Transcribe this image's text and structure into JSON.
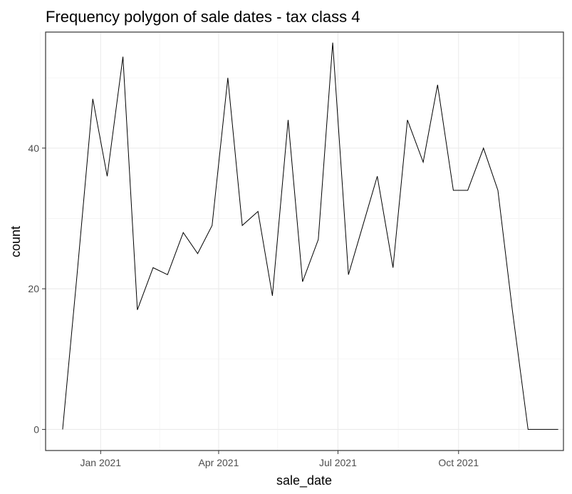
{
  "chart_data": {
    "type": "line",
    "title": "Frequency polygon of sale dates - tax class 4",
    "xlabel": "sale_date",
    "ylabel": "count",
    "x_type": "date",
    "xlim": [
      "2020-11-20",
      "2021-12-20"
    ],
    "ylim": [
      -3,
      56.5
    ],
    "x_ticks": [
      {
        "value": "2021-01-01",
        "label": "Jan 2021"
      },
      {
        "value": "2021-04-01",
        "label": "Apr 2021"
      },
      {
        "value": "2021-07-01",
        "label": "Jul 2021"
      },
      {
        "value": "2021-10-01",
        "label": "Oct 2021"
      }
    ],
    "x_minor_ticks": [
      "2020-11-16",
      "2021-02-15",
      "2021-05-16",
      "2021-08-16",
      "2021-11-16"
    ],
    "y_ticks": [
      {
        "value": 0,
        "label": "0"
      },
      {
        "value": 20,
        "label": "20"
      },
      {
        "value": 40,
        "label": "40"
      }
    ],
    "y_minor_ticks": [
      10,
      30,
      50
    ],
    "grid": true,
    "series": [
      {
        "color": "#000000",
        "x": [
          "2020-12-03",
          "2020-12-14",
          "2020-12-26",
          "2021-01-06",
          "2021-01-18",
          "2021-01-29",
          "2021-02-10",
          "2021-02-21",
          "2021-03-05",
          "2021-03-16",
          "2021-03-27",
          "2021-04-08",
          "2021-04-19",
          "2021-05-01",
          "2021-05-12",
          "2021-05-24",
          "2021-06-04",
          "2021-06-16",
          "2021-06-27",
          "2021-07-09",
          "2021-07-20",
          "2021-07-31",
          "2021-08-12",
          "2021-08-23",
          "2021-09-04",
          "2021-09-15",
          "2021-09-27",
          "2021-10-08",
          "2021-10-20",
          "2021-10-31",
          "2021-11-11",
          "2021-11-23",
          "2021-12-04",
          "2021-12-16"
        ],
        "y": [
          0,
          22,
          47,
          36,
          53,
          17,
          23,
          22,
          28,
          25,
          29,
          50,
          29,
          31,
          19,
          44,
          21,
          27,
          55,
          22,
          29,
          36,
          23,
          44,
          38,
          49,
          34,
          34,
          40,
          34,
          17,
          0,
          0,
          0
        ]
      }
    ]
  }
}
